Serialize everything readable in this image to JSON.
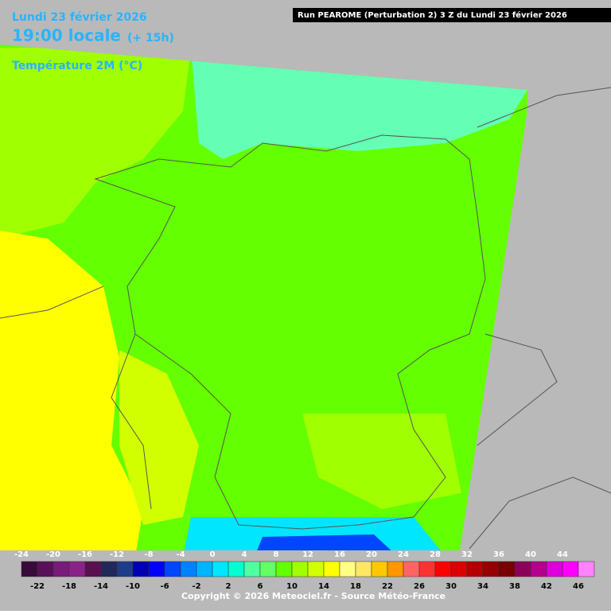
{
  "header": {
    "date": "Lundi 23 février 2026",
    "time": "19:00 locale",
    "offset": "(+ 15h)",
    "variable": "Température 2M (°C)",
    "run": "Run PEAROME (Perturbation 2) 3 Z du Lundi 23 février 2026"
  },
  "legend": {
    "labels": [
      -24,
      -22,
      -20,
      -18,
      -16,
      -14,
      -12,
      -10,
      -8,
      -6,
      -4,
      -2,
      0,
      2,
      4,
      6,
      8,
      10,
      12,
      14,
      16,
      18,
      20,
      22,
      24,
      26,
      28,
      30,
      32,
      34,
      36,
      38,
      40,
      42,
      44,
      46
    ],
    "colors": [
      "#3a0a3a",
      "#5a0f5a",
      "#7a1a7a",
      "#8a228a",
      "#5a1050",
      "#23285a",
      "#1e3c8c",
      "#0000b4",
      "#0000ff",
      "#0046ff",
      "#0082ff",
      "#00b4ff",
      "#00e6ff",
      "#00ffd2",
      "#50ffa0",
      "#64ff64",
      "#64ff00",
      "#a0ff00",
      "#d2ff00",
      "#ffff00",
      "#ffff82",
      "#ffe664",
      "#ffc800",
      "#ff9600",
      "#ff6464",
      "#ff3232",
      "#ff0000",
      "#dc0000",
      "#b40000",
      "#960000",
      "#780000",
      "#8c005a",
      "#b4008c",
      "#dc00dc",
      "#ff00ff",
      "#ff82ff"
    ]
  },
  "footer": {
    "copyright": "Copyright © 2026 Meteociel.fr - Source Météo-France"
  }
}
